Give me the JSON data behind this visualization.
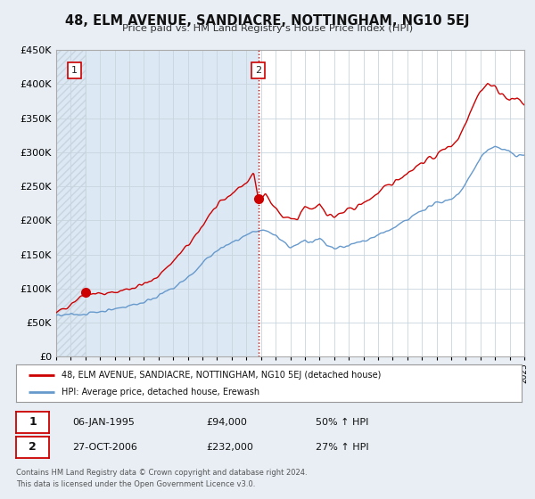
{
  "title": "48, ELM AVENUE, SANDIACRE, NOTTINGHAM, NG10 5EJ",
  "subtitle": "Price paid vs. HM Land Registry's House Price Index (HPI)",
  "legend_line1": "48, ELM AVENUE, SANDIACRE, NOTTINGHAM, NG10 5EJ (detached house)",
  "legend_line2": "HPI: Average price, detached house, Erewash",
  "table_row1": [
    "1",
    "06-JAN-1995",
    "£94,000",
    "50% ↑ HPI"
  ],
  "table_row2": [
    "2",
    "27-OCT-2006",
    "£232,000",
    "27% ↑ HPI"
  ],
  "footnote": "Contains HM Land Registry data © Crown copyright and database right 2024.\nThis data is licensed under the Open Government Licence v3.0.",
  "sale1_x": 1995.03,
  "sale1_y": 94000,
  "sale2_x": 2006.82,
  "sale2_y": 232000,
  "vline_x": 2006.82,
  "xlim": [
    1993,
    2025
  ],
  "ylim": [
    0,
    450000
  ],
  "red_color": "#cc0000",
  "blue_color": "#6699cc",
  "background_color": "#e8eef4",
  "plot_bg_color": "#ffffff",
  "grid_color": "#c8d4de",
  "hatch_color": "#c8d4de",
  "shade_color": "#dce8f4"
}
